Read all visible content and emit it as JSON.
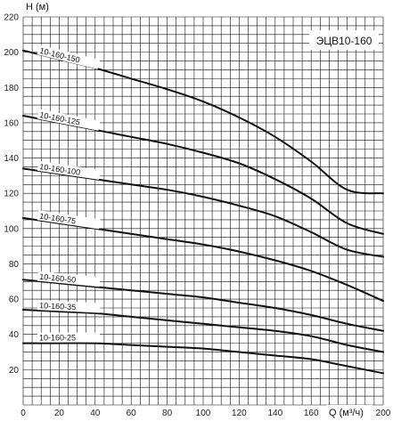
{
  "chart_data": {
    "type": "line",
    "title": "ЭЦВ10-160",
    "xlabel": "Q (м³/ч)",
    "ylabel": "H (м)",
    "xlim": [
      0,
      200
    ],
    "ylim": [
      0,
      220
    ],
    "x_ticks": [
      0,
      20,
      40,
      60,
      80,
      100,
      120,
      140,
      160,
      180,
      200
    ],
    "y_ticks": [
      20,
      40,
      60,
      80,
      100,
      120,
      140,
      160,
      180,
      200,
      220
    ],
    "grid": true,
    "series": [
      {
        "name": "10-160-150",
        "x": [
          0,
          20,
          40,
          60,
          80,
          100,
          120,
          140,
          160,
          180,
          200
        ],
        "y": [
          201,
          196,
          191,
          185,
          179,
          172,
          163,
          152,
          138,
          122,
          120
        ]
      },
      {
        "name": "10-160-125",
        "x": [
          0,
          20,
          40,
          60,
          80,
          100,
          120,
          140,
          160,
          180,
          200
        ],
        "y": [
          164,
          160,
          156,
          152,
          148,
          143,
          137,
          128,
          117,
          103,
          97
        ]
      },
      {
        "name": "10-160-100",
        "x": [
          0,
          20,
          40,
          60,
          80,
          100,
          120,
          140,
          160,
          180,
          200
        ],
        "y": [
          134,
          131,
          128,
          125,
          122,
          118,
          113,
          107,
          98,
          88,
          84
        ]
      },
      {
        "name": "10-160-75",
        "x": [
          0,
          20,
          40,
          60,
          80,
          100,
          120,
          140,
          160,
          180,
          200
        ],
        "y": [
          106,
          103,
          100,
          97,
          94,
          91,
          87,
          82,
          76,
          68,
          59
        ]
      },
      {
        "name": "10-160-50",
        "x": [
          0,
          20,
          40,
          60,
          80,
          100,
          120,
          140,
          160,
          180,
          200
        ],
        "y": [
          71,
          69,
          67,
          65,
          63,
          61,
          58,
          55,
          51,
          46,
          42
        ]
      },
      {
        "name": "10-160-35",
        "x": [
          0,
          20,
          40,
          60,
          80,
          100,
          120,
          140,
          160,
          180,
          200
        ],
        "y": [
          54,
          53,
          52,
          50,
          48,
          46,
          44,
          42,
          39,
          34,
          30
        ]
      },
      {
        "name": "10-160-25",
        "x": [
          0,
          20,
          40,
          60,
          80,
          100,
          120,
          140,
          160,
          180,
          200
        ],
        "y": [
          35,
          35,
          35,
          34,
          33,
          32,
          30,
          28,
          26,
          22,
          18
        ]
      }
    ]
  }
}
